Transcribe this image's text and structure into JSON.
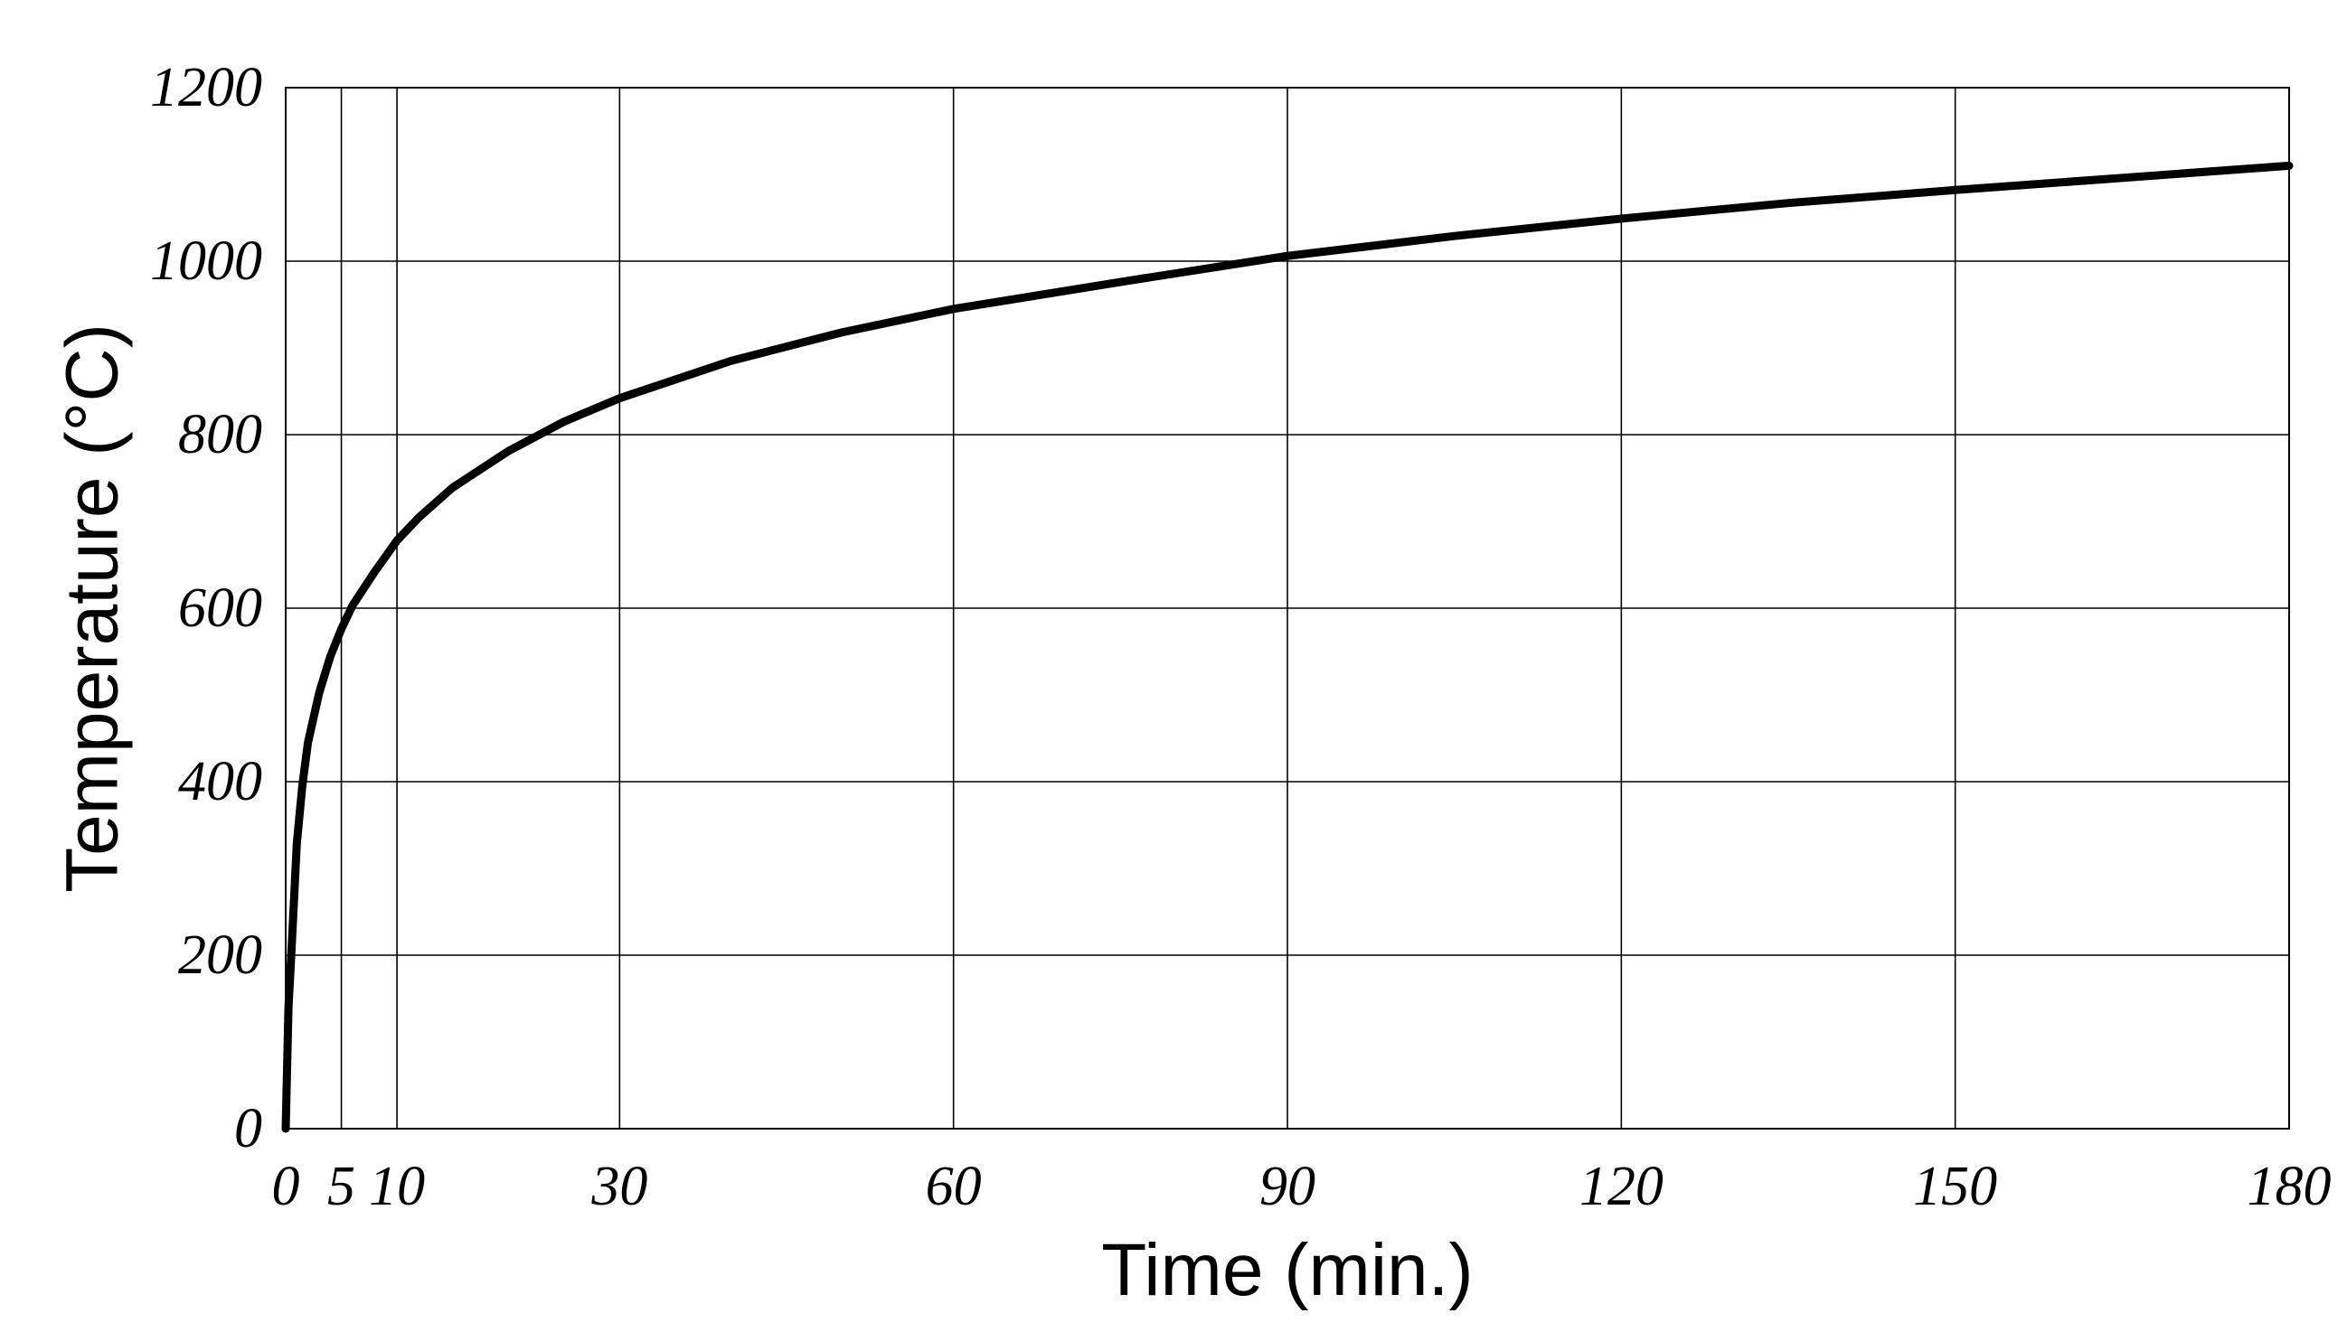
{
  "chart_data": {
    "type": "line",
    "title": "",
    "xlabel": "Time (min.)",
    "ylabel": "Temperature (°C)",
    "xlim": [
      0,
      180
    ],
    "ylim": [
      0,
      1200
    ],
    "x_ticks": [
      0,
      5,
      10,
      30,
      60,
      90,
      120,
      150,
      180
    ],
    "x_tick_labels": [
      "0",
      "5",
      "10",
      "30",
      "60",
      "90",
      "120",
      "150",
      "180"
    ],
    "y_ticks": [
      0,
      200,
      400,
      600,
      800,
      1000,
      1200
    ],
    "y_tick_labels": [
      "0",
      "200",
      "400",
      "600",
      "800",
      "1000",
      "1200"
    ],
    "grid": true,
    "legend": "none",
    "series": [
      {
        "color": "#000000",
        "x": [
          0,
          0.25,
          0.5,
          1,
          1.5,
          2,
          3,
          4,
          5,
          6,
          8,
          10,
          12,
          15,
          20,
          25,
          30,
          40,
          50,
          60,
          75,
          90,
          105,
          120,
          135,
          150,
          165,
          180
        ],
        "y": [
          0,
          140,
          200,
          329,
          396,
          445,
          502,
          544,
          576,
          603,
          642,
          678,
          705,
          739,
          781,
          815,
          842,
          885,
          918,
          945,
          976,
          1006,
          1029,
          1049,
          1067,
          1082,
          1096,
          1110
        ]
      }
    ]
  }
}
